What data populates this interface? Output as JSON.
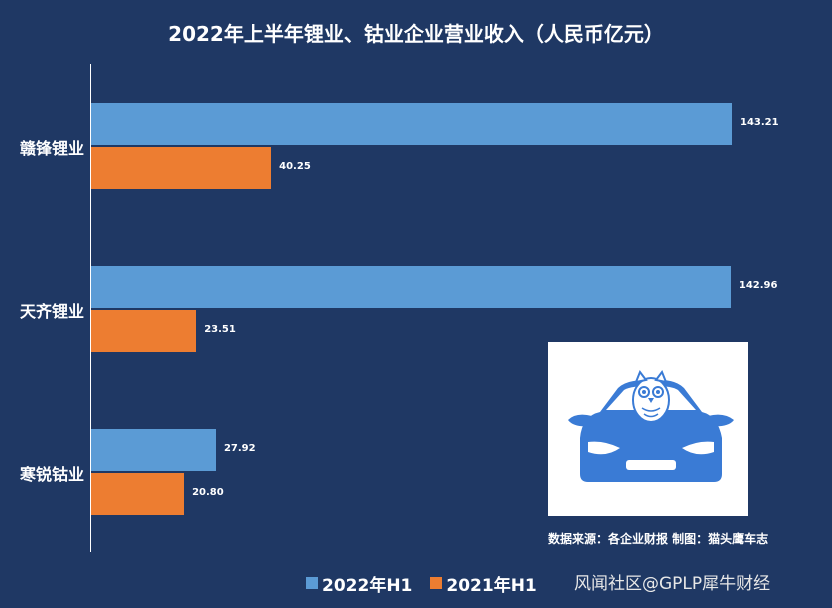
{
  "chart_data": {
    "type": "bar",
    "orientation": "horizontal",
    "title": "2022年上半年锂业、钴业企业营业收入（人民币亿元）",
    "categories": [
      "赣锋锂业",
      "天齐锂业",
      "寒锐钴业"
    ],
    "series": [
      {
        "name": "2022年H1",
        "values": [
          143.21,
          142.96,
          27.92
        ],
        "color": "#5b9bd5"
      },
      {
        "name": "2021年H1",
        "values": [
          40.25,
          23.51,
          20.8
        ],
        "color": "#ed7d31"
      }
    ],
    "xlim": [
      0,
      145
    ],
    "grid": false,
    "legend_position": "bottom"
  },
  "value_labels": [
    [
      "143.21",
      "40.25"
    ],
    [
      "142.96",
      "23.51"
    ],
    [
      "27.92",
      "20.80"
    ]
  ],
  "source_text": "数据来源：各企业财报  制图：猫头鹰车志",
  "watermark": "风闻社区@GPLP犀牛财经",
  "colors": {
    "background": "#1f3864",
    "logo_blue": "#3a7bd5"
  },
  "logo_icon": "owl-on-car-icon"
}
